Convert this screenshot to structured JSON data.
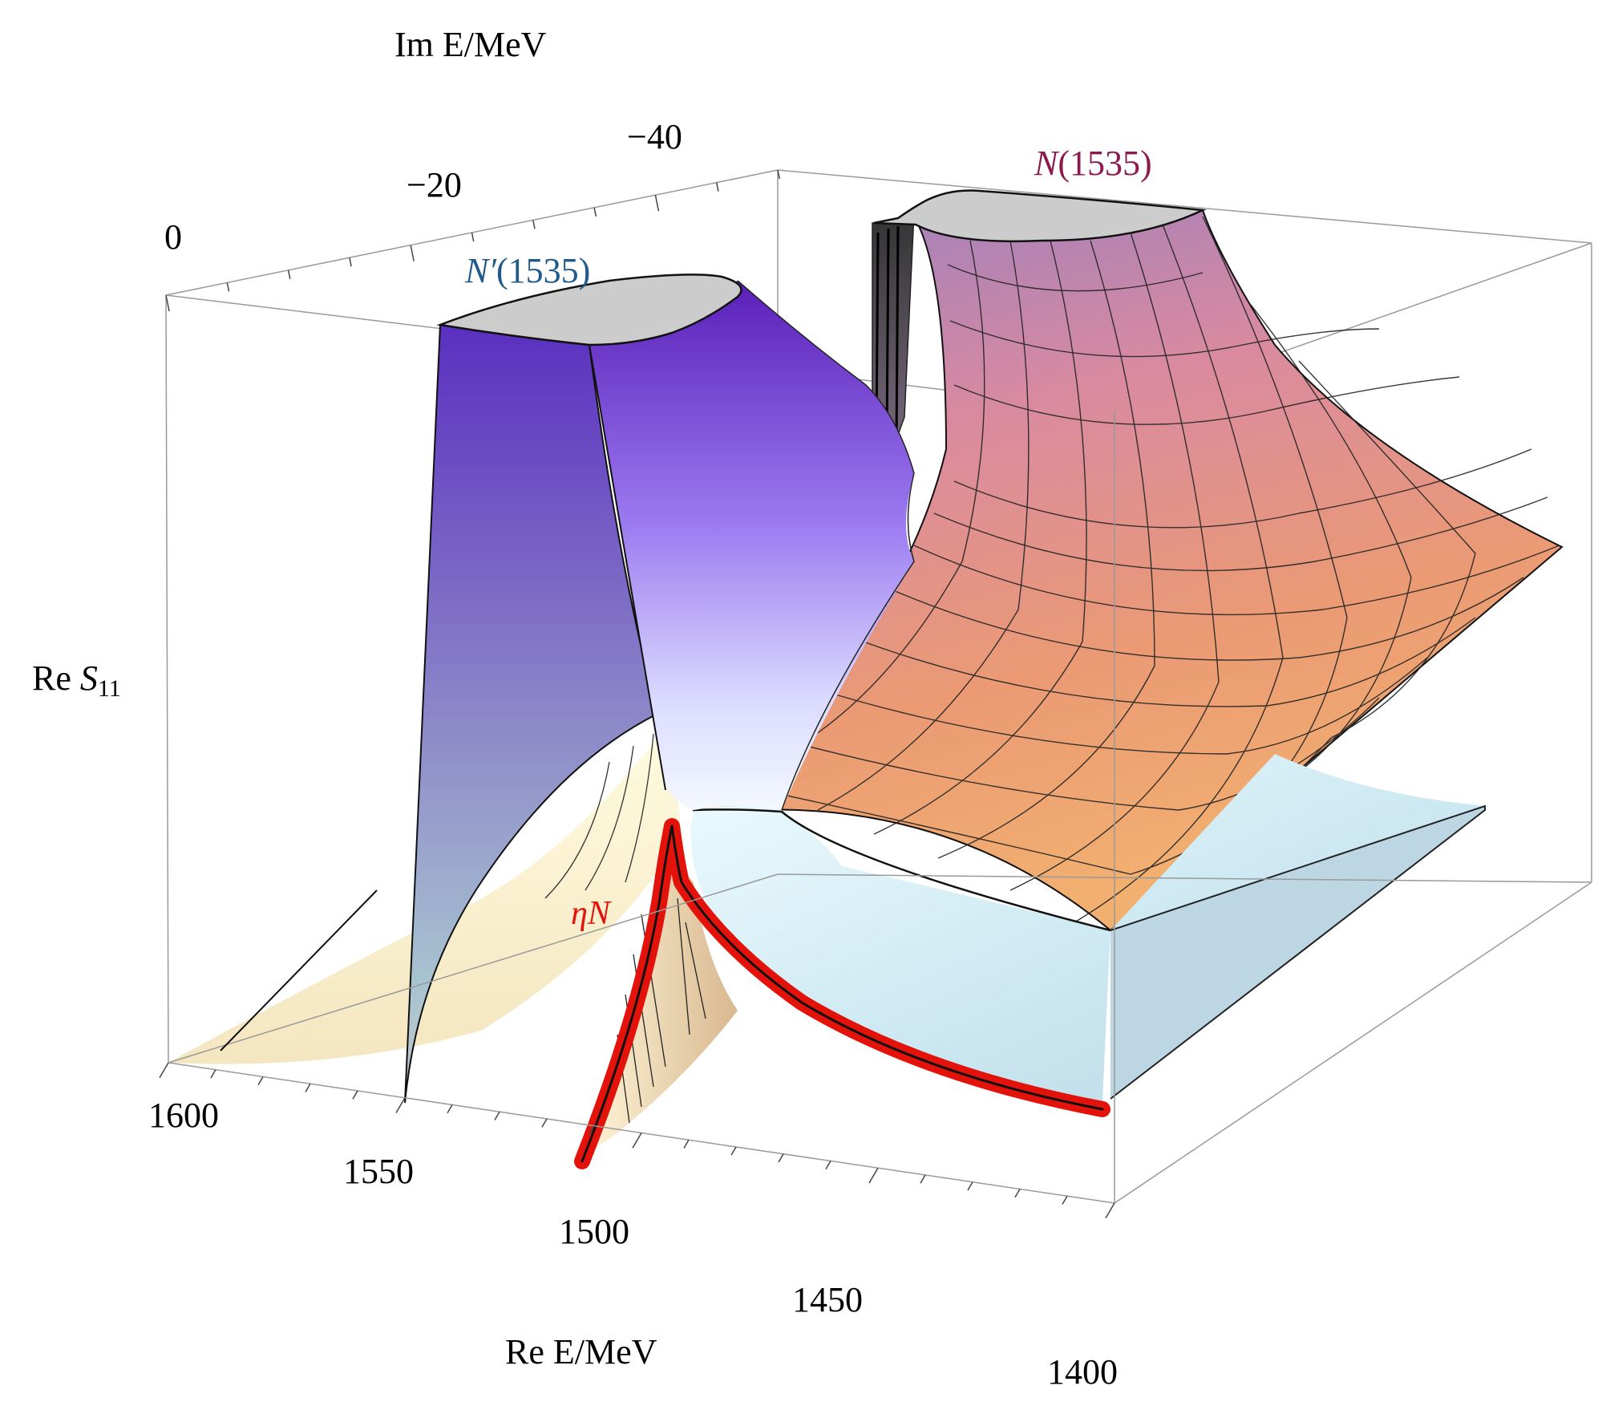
{
  "chart_data": {
    "type": "surface3d",
    "zlabel_plain": "Re ",
    "zlabel_italic": "S",
    "zlabel_sub": "11",
    "xlabel": "Re E/MeV",
    "ylabel": "Im E/MeV",
    "x_ticks": [
      "1600",
      "1550",
      "1500",
      "1450",
      "1400"
    ],
    "y_ticks": [
      "0",
      "−20",
      "−40"
    ],
    "xlim": [
      1400,
      1600
    ],
    "ylim": [
      -50,
      0
    ],
    "annotations": {
      "n1535_italic": "N",
      "n1535_rest": "(1535)",
      "nprime_italic": "N′",
      "nprime_rest": "(1535)",
      "etaN": "ηN"
    },
    "poles": [
      {
        "label": "N(1535)",
        "color": "#8b1a4e"
      },
      {
        "label": "N′(1535)",
        "color": "#1f5a8a"
      }
    ],
    "threshold": {
      "label": "ηN",
      "color": "#e3120b"
    }
  }
}
